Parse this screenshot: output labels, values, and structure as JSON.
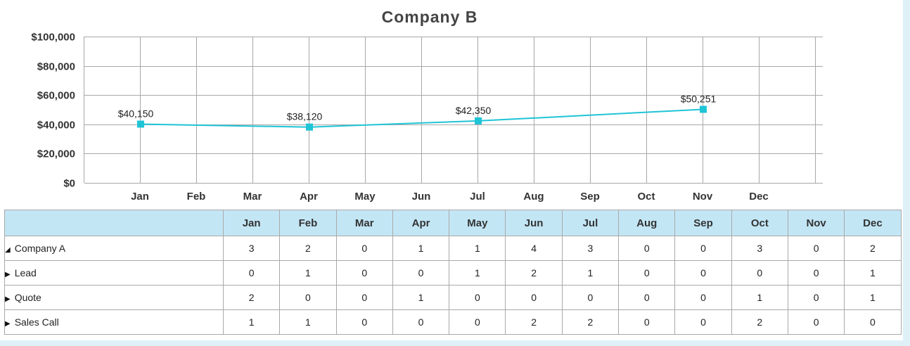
{
  "chart_data": {
    "type": "line",
    "title": "Company B",
    "categories": [
      "Jan",
      "Feb",
      "Mar",
      "Apr",
      "May",
      "Jun",
      "Jul",
      "Aug",
      "Sep",
      "Oct",
      "Nov",
      "Dec"
    ],
    "y_ticks": [
      "$0",
      "$20,000",
      "$40,000",
      "$60,000",
      "$80,000",
      "$100,000"
    ],
    "ylim": [
      0,
      100000
    ],
    "grid": true,
    "series": [
      {
        "color": "#1fc4d6",
        "points": [
          {
            "x": "Jan",
            "y": 40150,
            "label": "$40,150"
          },
          {
            "x": "Apr",
            "y": 38120,
            "label": "$38,120"
          },
          {
            "x": "Jul",
            "y": 42350,
            "label": "$42,350"
          },
          {
            "x": "Nov",
            "y": 50251,
            "label": "$50,251"
          }
        ]
      }
    ]
  },
  "table": {
    "header": [
      "",
      "Jan",
      "Feb",
      "Mar",
      "Apr",
      "May",
      "Jun",
      "Jul",
      "Aug",
      "Sep",
      "Oct",
      "Nov",
      "Dec"
    ],
    "header_bg": "#c3e6f5",
    "rows": [
      {
        "label": "Company A",
        "expanded": true,
        "level": 0,
        "values": [
          "3",
          "2",
          "0",
          "1",
          "1",
          "4",
          "3",
          "0",
          "0",
          "3",
          "0",
          "2"
        ]
      },
      {
        "label": "Lead",
        "expanded": false,
        "level": 1,
        "values": [
          "0",
          "1",
          "0",
          "0",
          "1",
          "2",
          "1",
          "0",
          "0",
          "0",
          "0",
          "1"
        ]
      },
      {
        "label": "Quote",
        "expanded": false,
        "level": 1,
        "values": [
          "2",
          "0",
          "0",
          "1",
          "0",
          "0",
          "0",
          "0",
          "0",
          "1",
          "0",
          "1"
        ]
      },
      {
        "label": "Sales Call",
        "expanded": false,
        "level": 1,
        "values": [
          "1",
          "1",
          "0",
          "0",
          "0",
          "2",
          "2",
          "0",
          "0",
          "2",
          "0",
          "0"
        ]
      }
    ]
  }
}
